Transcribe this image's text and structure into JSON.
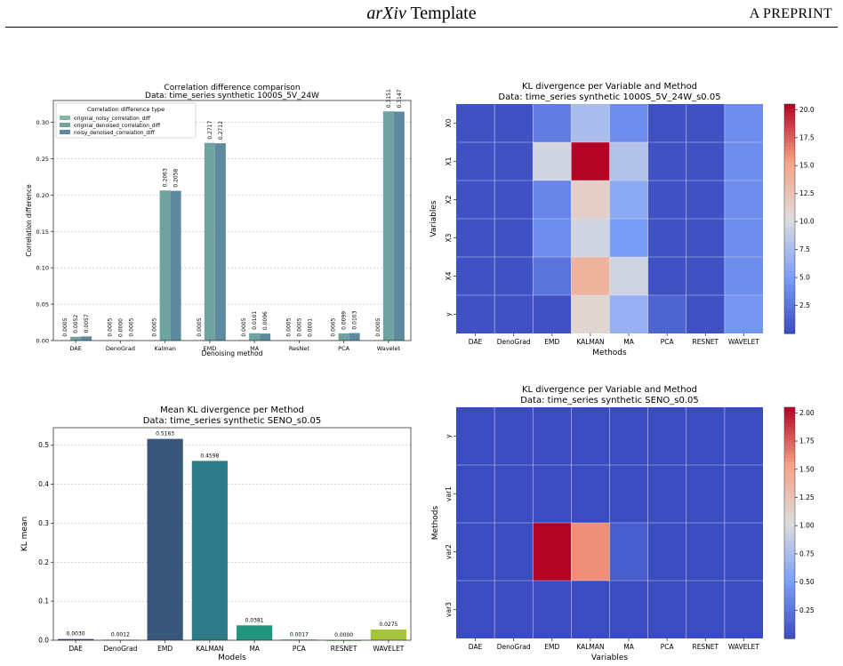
{
  "header": {
    "title_italic": "arXiv",
    "title_rest": " Template",
    "right": "A PREPRINT"
  },
  "chart_data": [
    {
      "type": "bar",
      "title": "Correlation difference comparison",
      "subtitle": "Data: time_series synthetic 1000S_5V_24W",
      "xlabel": "Denoising method",
      "ylabel": "Correlation difference",
      "ylim": [
        0,
        0.33
      ],
      "yticks": [
        "0.00",
        "0.05",
        "0.10",
        "0.15",
        "0.20",
        "0.25",
        "0.30"
      ],
      "grid": true,
      "legend_title": "Correlation difference type",
      "legend_position": "top-left",
      "categories": [
        "DAE",
        "DenoGrad",
        "Kalman",
        "EMD",
        "MA",
        "ResNet",
        "PCA",
        "Wavelet"
      ],
      "series": [
        {
          "name": "original_noisy_correlation_diff",
          "color": "#7fb7a2",
          "values": [
            0.0005,
            0.0005,
            0.0005,
            0.0005,
            0.0005,
            0.0005,
            0.0005,
            0.0005
          ],
          "labels": [
            "0.0005",
            "0.0005",
            "0.0005",
            "0.0005",
            "0.0005",
            "0.0005",
            "0.0005",
            "0.0005"
          ]
        },
        {
          "name": "original_denoised_correlation_diff",
          "color": "#6fa3a0",
          "values": [
            0.0052,
            0.0,
            0.2063,
            0.2717,
            0.0101,
            0.0005,
            0.0099,
            0.3151
          ],
          "labels": [
            "0.0052",
            "0.0000",
            "0.2063",
            "0.2717",
            "0.0101",
            "0.0005",
            "0.0099",
            "0.3151"
          ]
        },
        {
          "name": "noisy_denoised_correlation_diff",
          "color": "#5e8aa0",
          "values": [
            0.0057,
            0.0005,
            0.2058,
            0.2712,
            0.0096,
            0.0001,
            0.0103,
            0.3147
          ],
          "labels": [
            "0.0057",
            "0.0005",
            "0.2058",
            "0.2712",
            "0.0096",
            "0.0001",
            "0.0103",
            "0.3147"
          ]
        }
      ]
    },
    {
      "type": "heatmap",
      "title": "KL divergence per Variable and Method",
      "subtitle": "Data: time_series synthetic 1000S_5V_24W_s0.05",
      "xlabel": "Methods",
      "ylabel": "Variables",
      "x": [
        "DAE",
        "DenoGrad",
        "EMD",
        "KALMAN",
        "MA",
        "PCA",
        "RESNET",
        "WAVELET"
      ],
      "y": [
        "X0",
        "X1",
        "X2",
        "X3",
        "X4",
        "y"
      ],
      "values": [
        [
          0.3,
          0.3,
          3.0,
          7.5,
          4.0,
          0.3,
          0.3,
          4.0
        ],
        [
          0.3,
          0.3,
          9.6,
          20.5,
          8.0,
          0.3,
          0.3,
          4.0
        ],
        [
          0.3,
          0.3,
          3.5,
          11.5,
          6.0,
          0.3,
          0.3,
          4.0
        ],
        [
          0.3,
          0.3,
          4.0,
          9.6,
          5.0,
          0.3,
          0.3,
          4.0
        ],
        [
          0.3,
          0.3,
          2.5,
          14.0,
          9.5,
          0.3,
          0.3,
          4.0
        ],
        [
          0.3,
          0.3,
          0.3,
          11.0,
          6.5,
          1.5,
          0.3,
          4.5
        ]
      ],
      "colorbar": {
        "min": 0.0,
        "max": 20.5,
        "ticks": [
          "2.5",
          "5.0",
          "7.5",
          "10.0",
          "12.5",
          "15.0",
          "17.5",
          "20.0"
        ]
      }
    },
    {
      "type": "bar",
      "title": "Mean KL divergence per Method",
      "subtitle": "Data: time_series synthetic SENO_s0.05",
      "xlabel": "Models",
      "ylabel": "KL mean",
      "ylim": [
        0,
        0.545
      ],
      "yticks": [
        "0.0",
        "0.1",
        "0.2",
        "0.3",
        "0.4",
        "0.5"
      ],
      "grid": true,
      "categories": [
        "DAE",
        "DenoGrad",
        "EMD",
        "KALMAN",
        "MA",
        "PCA",
        "RESNET",
        "WAVELET"
      ],
      "values": [
        0.003,
        0.0012,
        0.5163,
        0.4598,
        0.0381,
        0.0017,
        0.0,
        0.0275
      ],
      "labels": [
        "0.0030",
        "0.0012",
        "0.5163",
        "0.4598",
        "0.0381",
        "0.0017",
        "0.0000",
        "0.0275"
      ],
      "colors": [
        "#46327e",
        "#3b528b",
        "#38577b",
        "#2e7b87",
        "#23957f",
        "#4fa06f",
        "#74b65c",
        "#a5c53d"
      ]
    },
    {
      "type": "heatmap",
      "title": "KL divergence per Variable and Method",
      "subtitle": "Data: time_series synthetic SENO_s0.05",
      "xlabel": "Variables",
      "ylabel": "Methods",
      "x": [
        "DAE",
        "DenoGrad",
        "EMD",
        "KALMAN",
        "MA",
        "PCA",
        "RESNET",
        "WAVELET"
      ],
      "y": [
        "y",
        "var1",
        "var2",
        "var3"
      ],
      "values": [
        [
          0.0,
          0.0,
          0.0,
          0.0,
          0.0,
          0.0,
          0.0,
          0.0
        ],
        [
          0.0,
          0.0,
          0.0,
          0.0,
          0.0,
          0.0,
          0.0,
          0.0
        ],
        [
          0.0,
          0.0,
          2.05,
          1.6,
          0.1,
          0.0,
          0.0,
          0.0
        ],
        [
          0.0,
          0.0,
          0.0,
          0.0,
          0.0,
          0.0,
          0.0,
          0.0
        ]
      ],
      "colorbar": {
        "min": 0.0,
        "max": 2.05,
        "ticks": [
          "0.25",
          "0.50",
          "0.75",
          "1.00",
          "1.25",
          "1.50",
          "1.75",
          "2.00"
        ]
      }
    }
  ]
}
